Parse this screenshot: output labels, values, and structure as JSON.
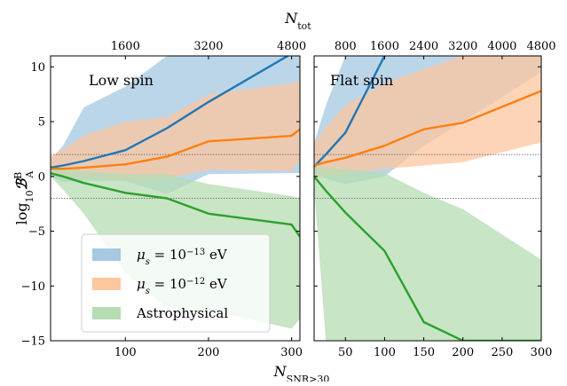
{
  "chart_data": [
    {
      "type": "line",
      "title": "Low spin",
      "xlabel": "N_SNR>30",
      "ylabel": "log10 B^B_A",
      "top_xlabel": "N_tot",
      "xlim": [
        10,
        310
      ],
      "ylim": [
        -15,
        11
      ],
      "x_ticks": [
        100,
        200,
        300
      ],
      "top_x_ticks": [
        {
          "at": 100,
          "label": "1600"
        },
        {
          "at": 200,
          "label": "3200"
        },
        {
          "at": 300,
          "label": "4800"
        }
      ],
      "y_ticks": [
        -15,
        -10,
        -5,
        0,
        5,
        10
      ],
      "hlines": [
        2,
        -2
      ],
      "x": [
        10,
        25,
        50,
        100,
        150,
        200,
        300,
        310
      ],
      "series": [
        {
          "name": "μs = 10^-13 eV",
          "color": "#1f77b4",
          "fill": "#a6c8e1",
          "median": [
            0.8,
            1.0,
            1.4,
            2.4,
            4.4,
            6.8,
            11.2,
            11.6
          ],
          "upper": [
            1.5,
            2.8,
            6.3,
            8.2,
            11.0,
            11.0,
            11.0,
            11.0
          ],
          "lower": [
            0.0,
            -0.5,
            -0.4,
            -0.4,
            -1.6,
            0.2,
            0.3,
            0.3
          ]
        },
        {
          "name": "μs = 10^-12 eV",
          "color": "#ff7f0e",
          "fill": "#fcc69f",
          "median": [
            0.7,
            0.7,
            0.8,
            1.1,
            1.8,
            3.2,
            3.7,
            4.3
          ],
          "upper": [
            1.8,
            2.5,
            3.7,
            5.0,
            5.4,
            7.5,
            8.5,
            8.7
          ],
          "lower": [
            0.2,
            0.0,
            -0.1,
            -0.4,
            -0.2,
            0.6,
            0.5,
            1.5
          ]
        },
        {
          "name": "Astrophysical",
          "color": "#2ca02c",
          "fill": "#b5dcb2",
          "median": [
            0.3,
            0.0,
            -0.6,
            -1.5,
            -2.0,
            -3.4,
            -4.4,
            -5.5
          ],
          "upper": [
            0.9,
            0.8,
            0.5,
            0.2,
            0.2,
            -0.7,
            -1.8,
            -2.0
          ],
          "lower": [
            0.0,
            -1.2,
            -3.4,
            -8.8,
            -12.0,
            -12.2,
            -13.9,
            -13.0
          ]
        }
      ]
    },
    {
      "type": "line",
      "title": "Flat spin",
      "xlabel": "N_SNR>30",
      "ylabel": "",
      "top_xlabel": "N_tot",
      "xlim": [
        10,
        300
      ],
      "ylim": [
        -15,
        11
      ],
      "x_ticks": [
        50,
        100,
        150,
        200,
        250,
        300
      ],
      "top_x_ticks": [
        {
          "at": 50,
          "label": "800"
        },
        {
          "at": 100,
          "label": "1600"
        },
        {
          "at": 150,
          "label": "2400"
        },
        {
          "at": 200,
          "label": "3200"
        },
        {
          "at": 250,
          "label": "4000"
        },
        {
          "at": 300,
          "label": "4800"
        }
      ],
      "y_ticks": [
        -15,
        -10,
        -5,
        0,
        5,
        10
      ],
      "hlines": [
        2,
        -2
      ],
      "x": [
        10,
        25,
        50,
        100,
        150,
        200,
        300
      ],
      "series": [
        {
          "name": "μs = 10^-13 eV",
          "color": "#1f77b4",
          "fill": "#a6c8e1",
          "median": [
            0.9,
            2.0,
            4.0,
            11.0,
            13.0,
            14.0,
            15.0
          ],
          "upper": [
            3.0,
            6.5,
            11.0,
            11.0,
            11.0,
            11.0,
            11.0
          ],
          "lower": [
            0.2,
            -0.2,
            -0.7,
            0.0,
            2.8,
            5.0,
            9.5
          ]
        },
        {
          "name": "μs = 10^-12 eV",
          "color": "#ff7f0e",
          "fill": "#fcc69f",
          "median": [
            1.0,
            1.3,
            1.7,
            2.8,
            4.3,
            4.9,
            7.8
          ],
          "upper": [
            3.0,
            4.5,
            6.5,
            8.5,
            9.8,
            11.0,
            11.0
          ],
          "lower": [
            -0.2,
            0.0,
            0.2,
            0.7,
            1.0,
            1.3,
            3.1
          ]
        },
        {
          "name": "Astrophysical",
          "color": "#2ca02c",
          "fill": "#b5dcb2",
          "median": [
            0.0,
            -1.3,
            -3.3,
            -6.8,
            -13.3,
            -15.0,
            -15.0
          ],
          "upper": [
            1.0,
            0.8,
            0.7,
            0.3,
            -1.5,
            -3.0,
            -7.6
          ],
          "lower": [
            -1.0,
            -15.0,
            -15.0,
            -15.0,
            -15.0,
            -15.0,
            -15.0
          ]
        }
      ]
    }
  ],
  "legend": {
    "placement": "lower-left",
    "items": [
      {
        "label_mu": "μ",
        "label_sub": "s",
        "label_eq": " = 10",
        "label_exp": "−13",
        "label_unit": " eV",
        "swatch": "#a6c8e1"
      },
      {
        "label_mu": "μ",
        "label_sub": "s",
        "label_eq": " = 10",
        "label_exp": "−12",
        "label_unit": " eV",
        "swatch": "#fcc69f"
      },
      {
        "label_text": "Astrophysical",
        "swatch": "#b5dcb2"
      }
    ]
  },
  "labels": {
    "y_main": "log",
    "y_sub": "10",
    "y_symbol": "ℬ",
    "y_sup": "B",
    "y_subA": "A",
    "x_main": "N",
    "x_sub": "SNR>30",
    "top_main": "N",
    "top_sub": "tot"
  }
}
